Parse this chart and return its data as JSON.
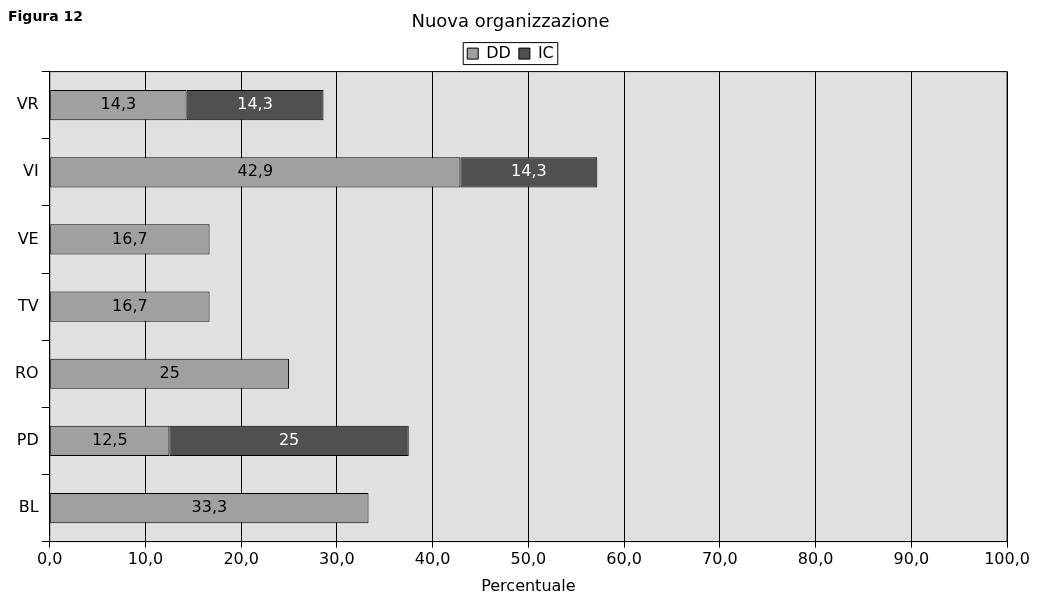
{
  "chart_data": {
    "type": "bar",
    "orientation": "horizontal",
    "stacked": true,
    "title": "Nuova organizzazione",
    "xlabel": "Percentuale",
    "annotations": [
      "Figura 12"
    ],
    "categories": [
      "VR",
      "VI",
      "VE",
      "TV",
      "RO",
      "PD",
      "BL"
    ],
    "series": [
      {
        "name": "DD",
        "color": "#a0a0a0",
        "values": [
          14.3,
          42.9,
          16.7,
          16.7,
          25,
          12.5,
          33.3
        ],
        "value_labels": [
          "14,3",
          "42,9",
          "16,7",
          "16,7",
          "25",
          "12,5",
          "33,3"
        ]
      },
      {
        "name": "IC",
        "color": "#505050",
        "values": [
          14.3,
          14.3,
          null,
          null,
          null,
          25,
          null
        ],
        "value_labels": [
          "14,3",
          "14,3",
          null,
          null,
          null,
          "25",
          null
        ]
      }
    ],
    "xlim": [
      0,
      100
    ],
    "xticks": [
      {
        "value": 0,
        "label": "0,0"
      },
      {
        "value": 10,
        "label": "10,0"
      },
      {
        "value": 20,
        "label": "20,0"
      },
      {
        "value": 30,
        "label": "30,0"
      },
      {
        "value": 40,
        "label": "40,0"
      },
      {
        "value": 50,
        "label": "50,0"
      },
      {
        "value": 60,
        "label": "60,0"
      },
      {
        "value": 70,
        "label": "70,0"
      },
      {
        "value": 80,
        "label": "80,0"
      },
      {
        "value": 90,
        "label": "90,0"
      },
      {
        "value": 100,
        "label": "100,0"
      }
    ],
    "grid": "x",
    "legend": "top"
  }
}
